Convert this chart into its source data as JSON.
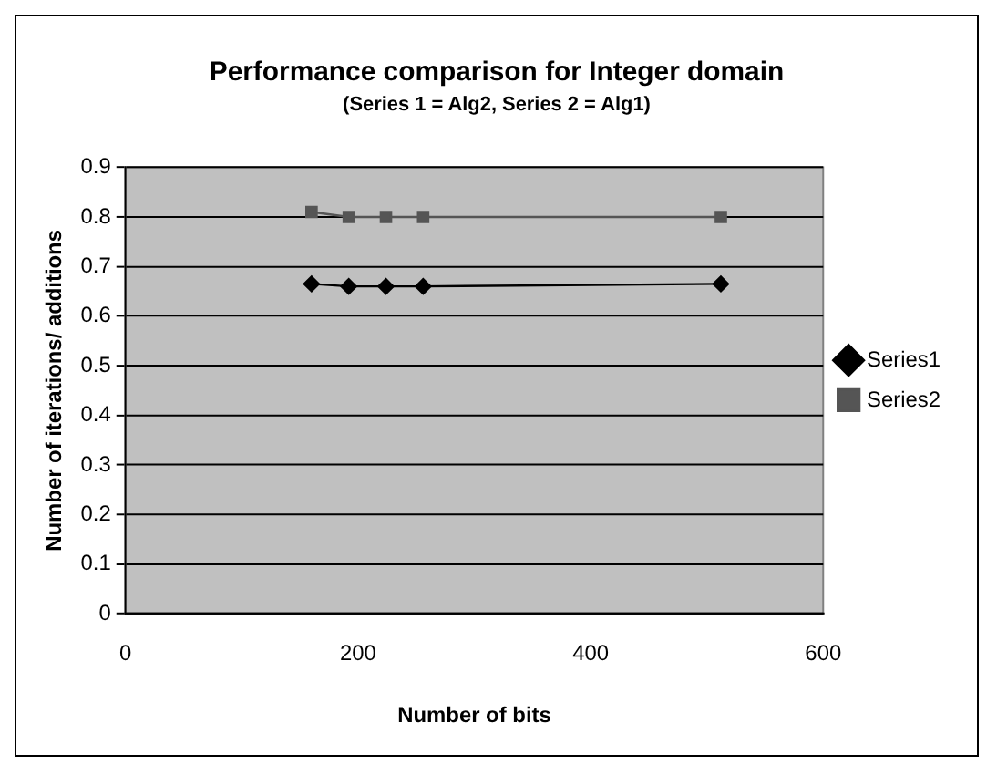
{
  "chart_data": {
    "type": "line",
    "title": "Performance comparison for Integer domain",
    "subtitle": "(Series 1 = Alg2, Series 2 = Alg1)",
    "xlabel": "Number of bits",
    "ylabel": "Number of iterations/ additions",
    "x": [
      160,
      192,
      224,
      256,
      512
    ],
    "series": [
      {
        "name": "Series1",
        "color": "#000000",
        "marker": "diamond",
        "values": [
          0.665,
          0.66,
          0.66,
          0.66,
          0.665
        ]
      },
      {
        "name": "Series2",
        "color": "#555555",
        "marker": "square",
        "values": [
          0.81,
          0.8,
          0.8,
          0.8,
          0.8
        ]
      }
    ],
    "xlim": [
      0,
      600
    ],
    "xticks": [
      0,
      200,
      400,
      600
    ],
    "ylim": [
      0,
      0.9
    ],
    "yticks": [
      0,
      0.1,
      0.2,
      0.3,
      0.4,
      0.5,
      0.6,
      0.7,
      0.8,
      0.9
    ],
    "grid": "y",
    "legend": "right",
    "line_style": "solid"
  }
}
